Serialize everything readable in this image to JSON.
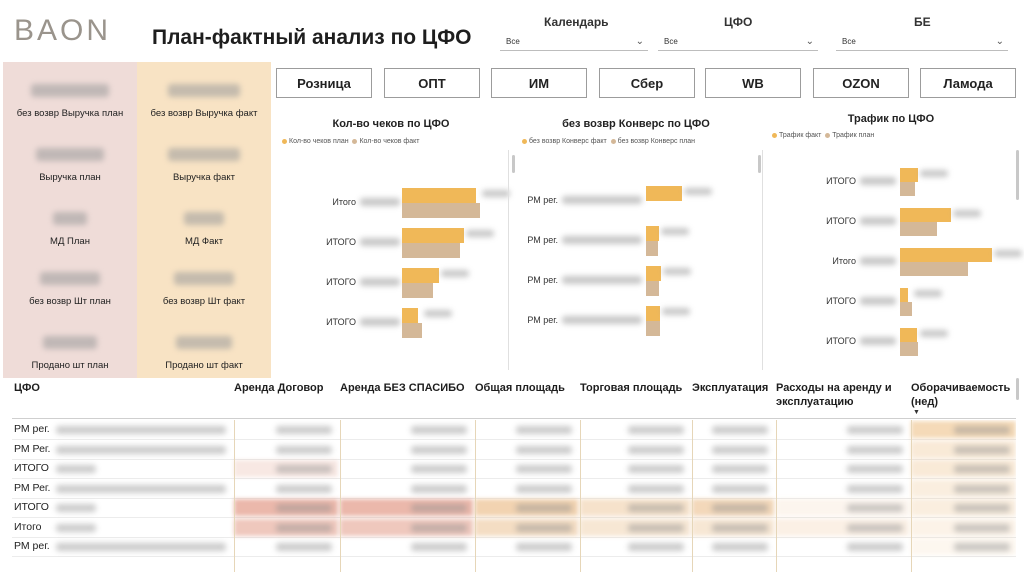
{
  "header": {
    "logo": "BAON",
    "title": "План-фактный анализ по ЦФО"
  },
  "filters": [
    {
      "label": "Календарь",
      "value": "Все"
    },
    {
      "label": "ЦФО",
      "value": "Все"
    },
    {
      "label": "БЕ",
      "value": "Все"
    }
  ],
  "kpi_plan": {
    "color": "#efdcd8",
    "items": [
      "без возвр Выручка план",
      "Выручка план",
      "МД План",
      "без возвр Шт план",
      "Продано шт план"
    ]
  },
  "kpi_fact": {
    "color": "#f8e3c4",
    "items": [
      "без возвр Выручка факт",
      "Выручка факт",
      "МД Факт",
      "без возвр Шт факт",
      "Продано шт факт"
    ]
  },
  "tabs": [
    "Розница",
    "ОПТ",
    "ИМ",
    "Сбер",
    "WB",
    "OZON",
    "Ламода"
  ],
  "colors": {
    "fact": "#f0b858",
    "plan": "#d4b898",
    "plan_alt": "#c8a88c"
  },
  "charts": {
    "checks": {
      "title": "Кол-во чеков по ЦФО",
      "legend": [
        "Кол-во чеков план",
        "Кол-во чеков факт"
      ],
      "rows": [
        {
          "label": "Итого",
          "fact": 0.95,
          "plan": 1.0
        },
        {
          "label": "ИТОГО",
          "fact": 0.8,
          "plan": 0.74
        },
        {
          "label": "ИТОГО",
          "fact": 0.48,
          "plan": 0.4
        },
        {
          "label": "ИТОГО",
          "fact": 0.21,
          "plan": 0.25
        }
      ]
    },
    "conversion": {
      "title": "без возвр Конверс по ЦФО",
      "legend": [
        "без возвр Конверс факт",
        "без возвр Конверс план"
      ],
      "rows": [
        {
          "label": "РМ рег.",
          "fact": 1.0,
          "plan": 0.0
        },
        {
          "label": "РМ рег.",
          "fact": 0.35,
          "plan": 0.32
        },
        {
          "label": "РМ рег.",
          "fact": 0.42,
          "plan": 0.35
        },
        {
          "label": "РМ рег.",
          "fact": 0.38,
          "plan": 0.38
        }
      ]
    },
    "traffic": {
      "title": "Трафик по ЦФО",
      "legend": [
        "Трафик факт",
        "Трафик план"
      ],
      "rows": [
        {
          "label": "ИТОГО",
          "fact": 0.2,
          "plan": 0.16
        },
        {
          "label": "ИТОГО",
          "fact": 0.55,
          "plan": 0.4
        },
        {
          "label": "Итого",
          "fact": 1.0,
          "plan": 0.74
        },
        {
          "label": "ИТОГО",
          "fact": 0.09,
          "plan": 0.13
        },
        {
          "label": "ИТОГО",
          "fact": 0.18,
          "plan": 0.2
        }
      ]
    }
  },
  "table": {
    "headers": [
      "ЦФО",
      "Аренда Договор",
      "Аренда БЕЗ СПАСИБО",
      "Общая площадь",
      "Торговая площадь",
      "Эксплуатация",
      "Расходы на аренду и эксплуатацию",
      "Оборачиваемость (нед)"
    ],
    "rows": [
      "РМ рег.",
      "РМ Рег.",
      "ИТОГО",
      "РМ Рег.",
      "ИТОГО",
      "Итого",
      "РМ рег."
    ]
  }
}
